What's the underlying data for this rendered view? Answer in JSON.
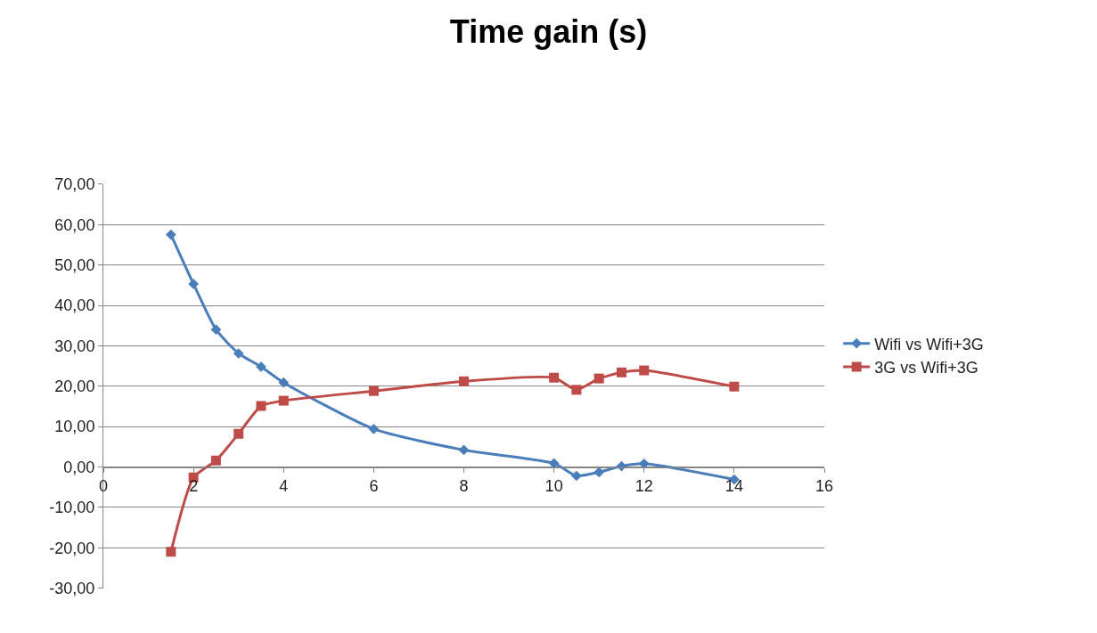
{
  "chart_data": {
    "type": "line",
    "title": "Time gain (s)",
    "series": [
      {
        "name": "Wifi vs Wifi+3G",
        "color": "#4a7ebb",
        "marker": "diamond",
        "x": [
          1.5,
          2,
          2.5,
          3,
          3.5,
          4,
          6,
          8,
          10,
          10.5,
          11,
          11.5,
          12,
          14
        ],
        "values": [
          57.5,
          45.3,
          34.0,
          28.1,
          24.8,
          20.9,
          9.4,
          4.2,
          0.9,
          -2.2,
          -1.3,
          0.2,
          0.8,
          -3.1
        ]
      },
      {
        "name": "3G vs Wifi+3G",
        "color": "#be4b48",
        "marker": "square",
        "x": [
          1.5,
          2,
          2.5,
          3,
          3.5,
          4,
          6,
          8,
          10,
          10.5,
          11,
          11.5,
          12,
          14
        ],
        "values": [
          -21.0,
          -2.6,
          1.6,
          8.2,
          15.1,
          16.4,
          18.8,
          21.2,
          22.1,
          19.1,
          21.9,
          23.4,
          23.9,
          19.9
        ]
      }
    ],
    "xlim": [
      0,
      16
    ],
    "xticks": [
      0,
      2,
      4,
      6,
      8,
      10,
      12,
      14,
      16
    ],
    "ylim": [
      -30,
      70
    ],
    "yticks": [
      {
        "value": -30,
        "label": "-30,00"
      },
      {
        "value": -20,
        "label": "-20,00"
      },
      {
        "value": -10,
        "label": "-10,00"
      },
      {
        "value": 0,
        "label": "0,00"
      },
      {
        "value": 10,
        "label": "10,00"
      },
      {
        "value": 20,
        "label": "20,00"
      },
      {
        "value": 30,
        "label": "30,00"
      },
      {
        "value": 40,
        "label": "40,00"
      },
      {
        "value": 50,
        "label": "50,00"
      },
      {
        "value": 60,
        "label": "60,00"
      },
      {
        "value": 70,
        "label": "70,00"
      }
    ],
    "grid": "y",
    "legend": "right"
  }
}
